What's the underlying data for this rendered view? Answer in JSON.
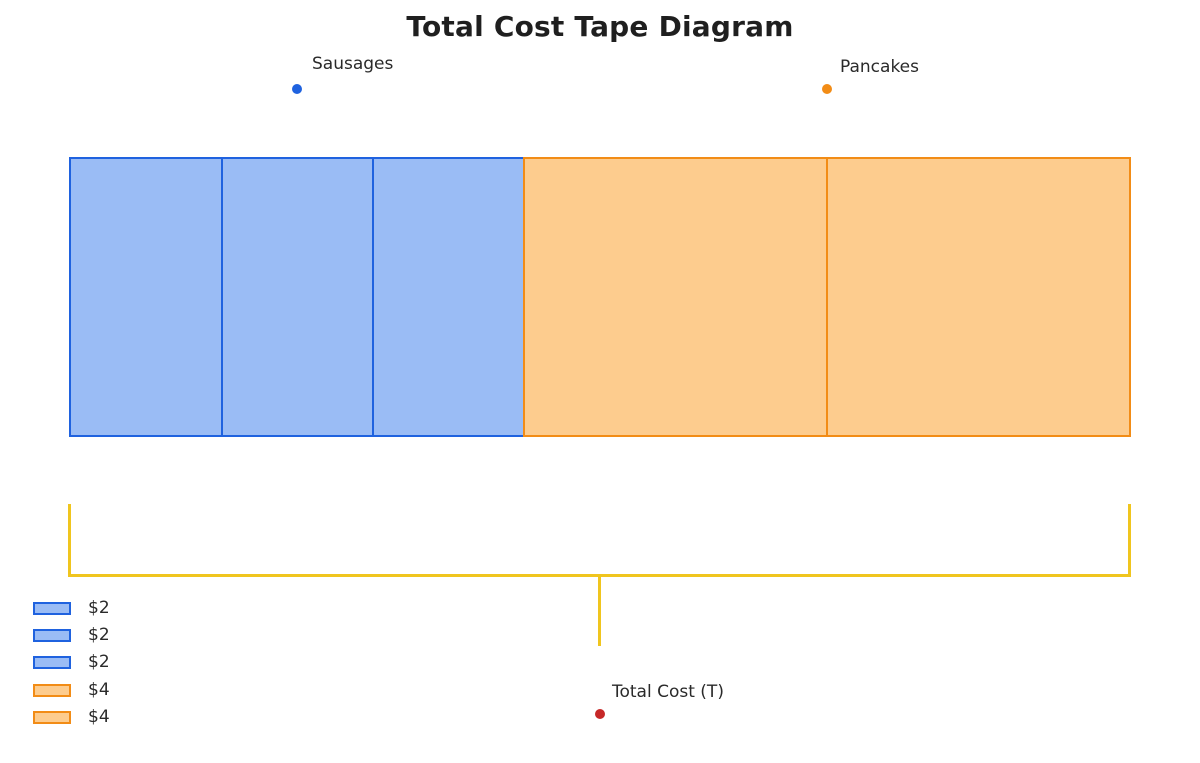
{
  "title": "Total Cost Tape Diagram",
  "groups": {
    "sausages": {
      "label": "Sausages",
      "color": "#1f62df"
    },
    "pancakes": {
      "label": "Pancakes",
      "color": "#f28c16"
    }
  },
  "tape": [
    {
      "group": "sausages",
      "value": 2
    },
    {
      "group": "sausages",
      "value": 2
    },
    {
      "group": "sausages",
      "value": 2
    },
    {
      "group": "pancakes",
      "value": 4
    },
    {
      "group": "pancakes",
      "value": 4
    }
  ],
  "total": {
    "label": "Total Cost (T)",
    "color": "#c62828"
  },
  "bracket_color": "#f0c51e",
  "legend": [
    {
      "label": "$2",
      "group": "sausages"
    },
    {
      "label": "$2",
      "group": "sausages"
    },
    {
      "label": "$2",
      "group": "sausages"
    },
    {
      "label": "$4",
      "group": "pancakes"
    },
    {
      "label": "$4",
      "group": "pancakes"
    }
  ]
}
